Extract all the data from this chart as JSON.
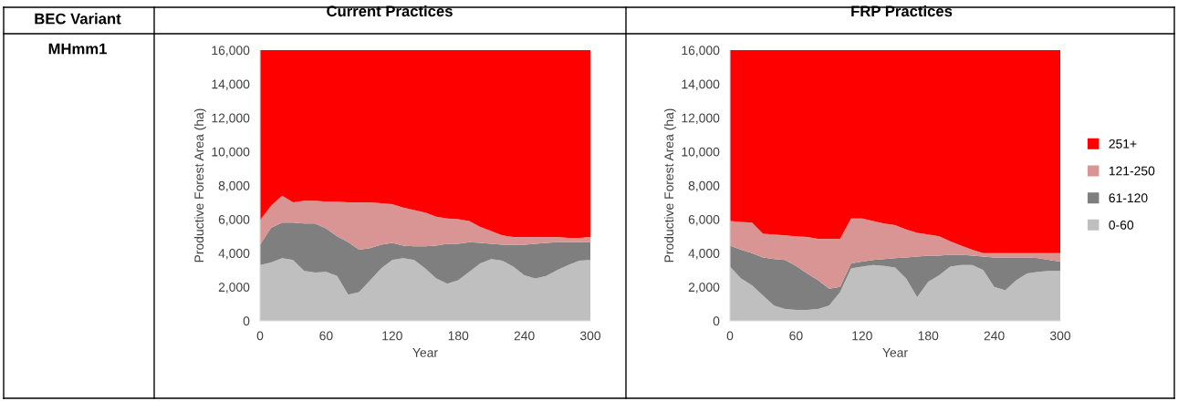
{
  "chart_data": [
    {
      "type": "area",
      "stacked": true,
      "title": "Current Practices",
      "xlabel": "Year",
      "ylabel": "Productive Forest Area (ha)",
      "annotations": [
        "BEC Variant",
        "MHmm1"
      ],
      "x": [
        0,
        10,
        20,
        30,
        40,
        50,
        60,
        70,
        80,
        90,
        100,
        110,
        120,
        130,
        140,
        150,
        160,
        170,
        180,
        190,
        200,
        210,
        220,
        230,
        240,
        250,
        260,
        270,
        280,
        290,
        300
      ],
      "xlim": [
        0,
        300
      ],
      "xticks": [
        0,
        60,
        120,
        180,
        240,
        300
      ],
      "ylim": [
        0,
        16000
      ],
      "yticks": [
        {
          "value": 0,
          "label": "0"
        },
        {
          "value": 2000,
          "label": "2,000"
        },
        {
          "value": 4000,
          "label": "4,000"
        },
        {
          "value": 6000,
          "label": "6,000"
        },
        {
          "value": 8000,
          "label": "8,000"
        },
        {
          "value": 10000,
          "label": "10,000"
        },
        {
          "value": 12000,
          "label": "12,000"
        },
        {
          "value": 14000,
          "label": "14,000"
        },
        {
          "value": 16000,
          "label": "16,000"
        }
      ],
      "grid": false,
      "legend": false,
      "series": [
        {
          "color": "#bfbfbf",
          "values": [
            3300,
            3450,
            3700,
            3600,
            2950,
            2850,
            2900,
            2650,
            1550,
            1700,
            2400,
            3100,
            3600,
            3700,
            3600,
            3100,
            2500,
            2200,
            2400,
            2900,
            3400,
            3650,
            3550,
            3200,
            2700,
            2500,
            2650,
            3000,
            3300,
            3550,
            3600
          ]
        },
        {
          "color": "#7f7f7f",
          "values": [
            1200,
            2050,
            2100,
            2200,
            2800,
            2900,
            2550,
            2350,
            3100,
            2500,
            1900,
            1400,
            1000,
            750,
            800,
            1300,
            1950,
            2350,
            2150,
            1750,
            1200,
            900,
            950,
            1300,
            1800,
            2050,
            1950,
            1650,
            1350,
            1100,
            1050
          ]
        },
        {
          "color": "#d99594",
          "values": [
            1450,
            1300,
            1600,
            1200,
            1350,
            1350,
            1600,
            2050,
            2350,
            2800,
            2700,
            2450,
            2300,
            2250,
            2150,
            2000,
            1700,
            1500,
            1450,
            1250,
            950,
            750,
            550,
            450,
            450,
            400,
            350,
            300,
            250,
            250,
            300
          ]
        },
        {
          "color": "#ff0000",
          "values": [
            10050,
            9200,
            8600,
            9000,
            8900,
            8900,
            8950,
            8950,
            9000,
            9000,
            9000,
            9050,
            9100,
            9300,
            9450,
            9600,
            9850,
            9950,
            10000,
            10100,
            10450,
            10700,
            10950,
            11050,
            11050,
            11050,
            11050,
            11050,
            11100,
            11100,
            11050
          ]
        }
      ]
    },
    {
      "type": "area",
      "stacked": true,
      "title": "FRP Practices",
      "xlabel": "Year",
      "ylabel": "Productive Forest Area (ha)",
      "x": [
        0,
        10,
        20,
        30,
        40,
        50,
        60,
        70,
        80,
        90,
        100,
        110,
        120,
        130,
        140,
        150,
        160,
        170,
        180,
        190,
        200,
        210,
        220,
        230,
        240,
        250,
        260,
        270,
        280,
        290,
        300
      ],
      "xlim": [
        0,
        300
      ],
      "xticks": [
        0,
        60,
        120,
        180,
        240,
        300
      ],
      "ylim": [
        0,
        16000
      ],
      "yticks": [
        {
          "value": 0,
          "label": "0"
        },
        {
          "value": 2000,
          "label": "2,000"
        },
        {
          "value": 4000,
          "label": "4,000"
        },
        {
          "value": 6000,
          "label": "6,000"
        },
        {
          "value": 8000,
          "label": "8,000"
        },
        {
          "value": 10000,
          "label": "10,000"
        },
        {
          "value": 12000,
          "label": "12,000"
        },
        {
          "value": 14000,
          "label": "14,000"
        },
        {
          "value": 16000,
          "label": "16,000"
        }
      ],
      "grid": false,
      "legend": "right",
      "series": [
        {
          "name": "0-60",
          "color": "#bfbfbf",
          "values": [
            3200,
            2500,
            2100,
            1500,
            900,
            700,
            650,
            650,
            700,
            900,
            1700,
            3100,
            3200,
            3300,
            3250,
            3150,
            2500,
            1400,
            2300,
            2700,
            3200,
            3300,
            3300,
            3000,
            2000,
            1800,
            2400,
            2800,
            2900,
            2950,
            2950
          ]
        },
        {
          "name": "61-120",
          "color": "#7f7f7f",
          "values": [
            1250,
            1700,
            1900,
            2250,
            2750,
            2900,
            2600,
            2150,
            1700,
            1000,
            300,
            300,
            300,
            300,
            400,
            550,
            1250,
            2400,
            1550,
            1150,
            700,
            600,
            550,
            800,
            1750,
            1950,
            1350,
            950,
            800,
            650,
            550
          ]
        },
        {
          "name": "121-250",
          "color": "#d99594",
          "values": [
            1450,
            1650,
            1800,
            1400,
            1450,
            1450,
            1750,
            2150,
            2450,
            2950,
            2850,
            2650,
            2550,
            2300,
            2100,
            1950,
            1650,
            1400,
            1250,
            1150,
            800,
            550,
            350,
            200,
            250,
            250,
            250,
            250,
            300,
            400,
            500
          ]
        },
        {
          "name": "251+",
          "color": "#ff0000",
          "values": [
            10100,
            10150,
            10200,
            10850,
            10900,
            10950,
            11000,
            11050,
            11150,
            11150,
            11150,
            9950,
            9950,
            10100,
            10250,
            10350,
            10600,
            10800,
            10900,
            11000,
            11300,
            11550,
            11800,
            12000,
            12000,
            12000,
            12000,
            12000,
            12000,
            12000,
            12000
          ]
        }
      ]
    }
  ]
}
